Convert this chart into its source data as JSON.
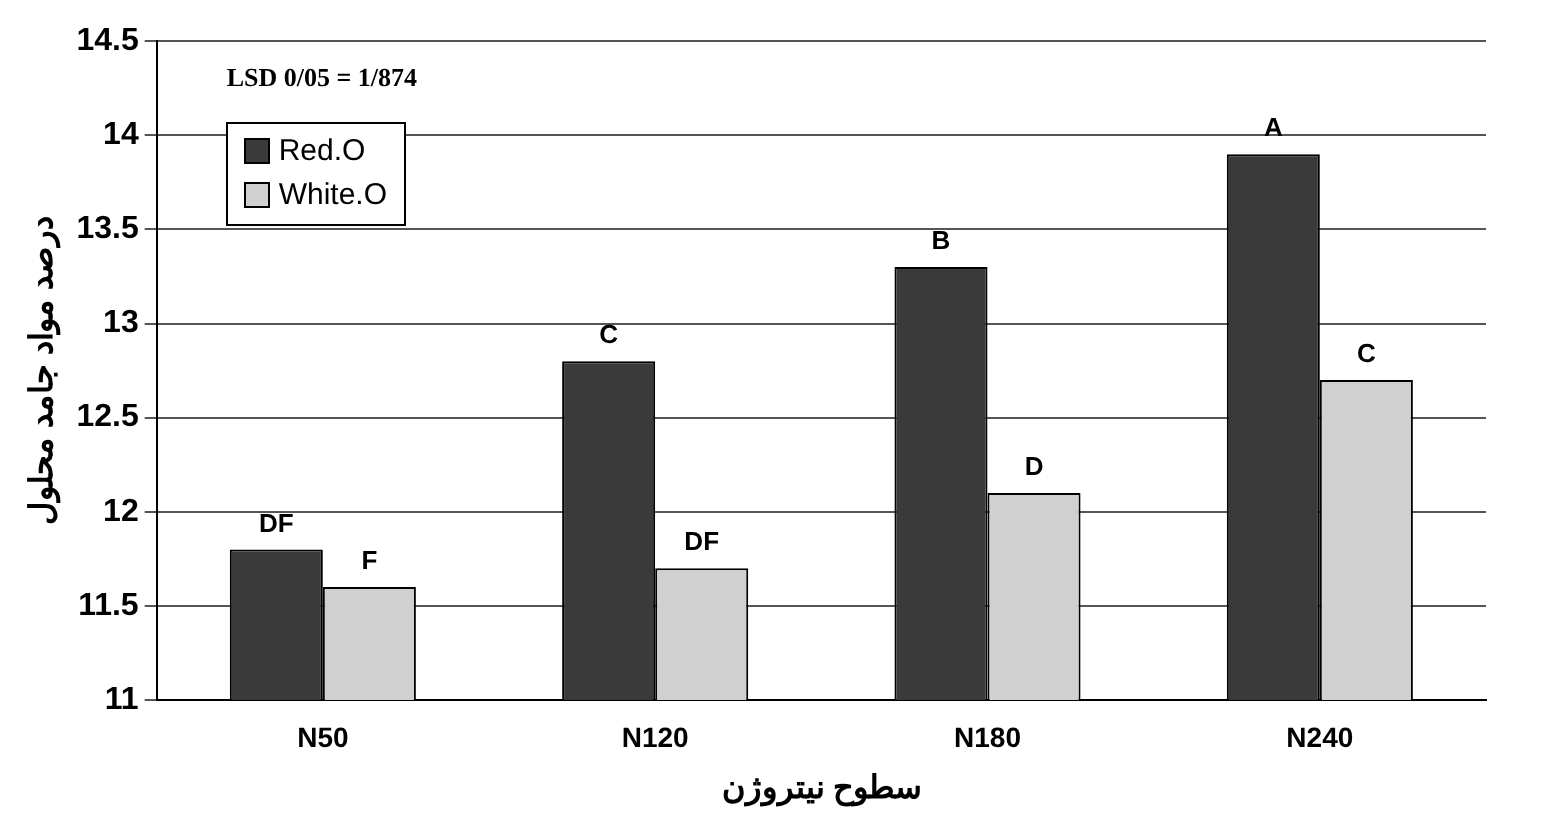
{
  "chart_data": {
    "type": "bar",
    "xlabel": "سطوح نیتروژن",
    "ylabel": "درصد مواد جامد محلول",
    "categories": [
      "N50",
      "N120",
      "N180",
      "N240"
    ],
    "series": [
      {
        "name": "Red.O",
        "color": "#3a3a3a",
        "values": [
          11.8,
          12.8,
          13.3,
          13.9
        ],
        "value_labels": [
          "DF",
          "C",
          "B",
          "A"
        ]
      },
      {
        "name": "White.O",
        "color": "#d0d0d0",
        "values": [
          11.6,
          11.7,
          12.1,
          12.7
        ],
        "value_labels": [
          "F",
          "DF",
          "D",
          "C"
        ]
      }
    ],
    "annotations": [
      "LSD 0/05 = 1/874"
    ],
    "ylim": [
      11,
      14.5
    ],
    "yticks": [
      11,
      11.5,
      12,
      12.5,
      13,
      13.5,
      14,
      14.5
    ],
    "grid": "y",
    "legend": "top left"
  }
}
